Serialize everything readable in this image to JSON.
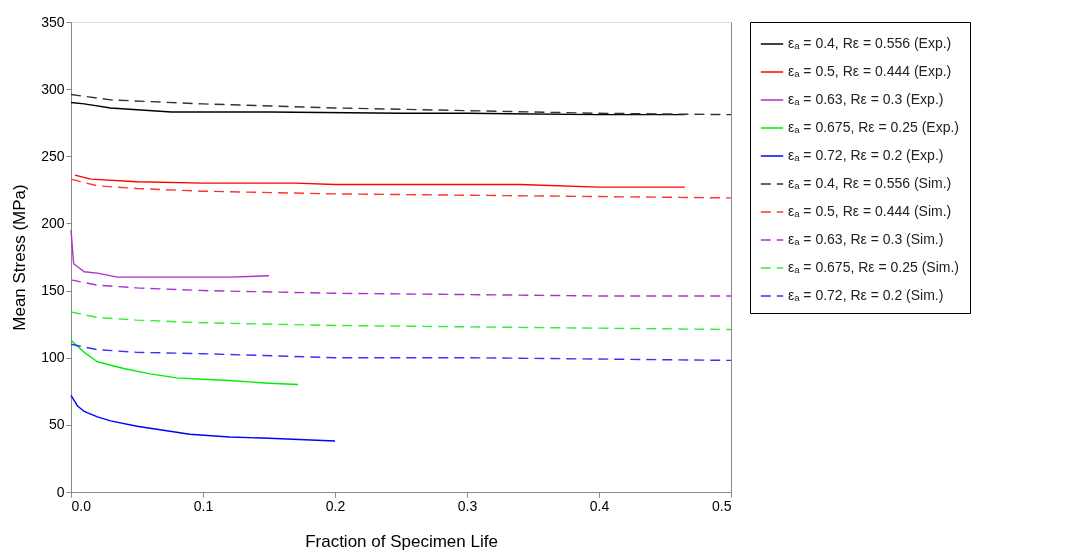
{
  "chart_data": {
    "type": "line",
    "xlabel": "Fraction of Specimen Life",
    "ylabel": "Mean Stress (MPa)",
    "xlim": [
      0,
      0.5
    ],
    "xticks": [
      {
        "value": 0,
        "label": "0.0"
      },
      0.1,
      0.2,
      0.3,
      0.4,
      0.5
    ],
    "ylim": [
      0,
      350
    ],
    "yticks": [
      0,
      50,
      100,
      150,
      200,
      250,
      300,
      350
    ],
    "grid": false,
    "legend": "right",
    "marker": "none",
    "series": [
      {
        "name": "εₐ = 0.4, Rε = 0.556 (Exp.)",
        "color": "#000000",
        "line_style": "solid",
        "x": [
          0,
          0.01,
          0.03,
          0.076,
          0.15,
          0.25,
          0.3,
          0.4,
          0.465
        ],
        "values": [
          290,
          289,
          286,
          283,
          283,
          282,
          282,
          281,
          281
        ]
      },
      {
        "name": "εₐ = 0.5, Rε = 0.444 (Exp.)",
        "color": "#ff0000",
        "line_style": "solid",
        "x": [
          0.003,
          0.015,
          0.05,
          0.1,
          0.17,
          0.2,
          0.34,
          0.4,
          0.465
        ],
        "values": [
          236,
          233,
          231,
          230,
          230,
          229,
          229,
          227,
          227
        ]
      },
      {
        "name": "εₐ = 0.63, Rε = 0.3 (Exp.)",
        "color": "#aa33cc",
        "line_style": "solid",
        "x": [
          0,
          0.002,
          0.01,
          0.02,
          0.035,
          0.1,
          0.12,
          0.15
        ],
        "values": [
          195,
          170,
          164,
          163,
          160,
          160,
          160,
          161
        ]
      },
      {
        "name": "εₐ = 0.675, Rε = 0.25 (Exp.)",
        "color": "#00ee00",
        "line_style": "solid",
        "x": [
          0,
          0.01,
          0.02,
          0.04,
          0.06,
          0.08,
          0.1,
          0.12,
          0.15,
          0.172
        ],
        "values": [
          113,
          104,
          97,
          92,
          88,
          85,
          84,
          83,
          81,
          80
        ]
      },
      {
        "name": "εₐ = 0.72, Rε = 0.2 (Exp.)",
        "color": "#0000ff",
        "line_style": "solid",
        "x": [
          0,
          0.005,
          0.01,
          0.02,
          0.03,
          0.05,
          0.07,
          0.09,
          0.12,
          0.15,
          0.2
        ],
        "values": [
          72,
          64,
          60,
          56,
          53,
          49,
          46,
          43,
          41,
          40,
          38
        ]
      },
      {
        "name": "εₐ = 0.4, Rε = 0.556 (Sim.)",
        "color": "#333333",
        "line_style": "dashed",
        "x": [
          0,
          0.03,
          0.1,
          0.2,
          0.3,
          0.4,
          0.5
        ],
        "values": [
          296,
          292,
          289,
          286,
          284,
          282,
          281
        ]
      },
      {
        "name": "εₐ = 0.5, Rε = 0.444 (Sim.)",
        "color": "#ff3333",
        "line_style": "dashed",
        "x": [
          0,
          0.02,
          0.05,
          0.1,
          0.2,
          0.3,
          0.4,
          0.5
        ],
        "values": [
          233,
          228,
          226,
          224,
          222,
          221,
          220,
          219
        ]
      },
      {
        "name": "εₐ = 0.63, Rε = 0.3 (Sim.)",
        "color": "#aa33cc",
        "line_style": "dashed",
        "x": [
          0,
          0.02,
          0.05,
          0.1,
          0.2,
          0.3,
          0.4,
          0.5
        ],
        "values": [
          158,
          154,
          152,
          150,
          148,
          147,
          146,
          146
        ]
      },
      {
        "name": "εₐ = 0.675, Rε = 0.25 (Sim.)",
        "color": "#33ee33",
        "line_style": "dashed",
        "x": [
          0,
          0.02,
          0.05,
          0.1,
          0.2,
          0.3,
          0.4,
          0.5
        ],
        "values": [
          134,
          130,
          128,
          126,
          124,
          123,
          122,
          121
        ]
      },
      {
        "name": "εₐ = 0.72, Rε = 0.2 (Sim.)",
        "color": "#3333ff",
        "line_style": "dashed",
        "x": [
          0,
          0.02,
          0.05,
          0.1,
          0.2,
          0.3,
          0.4,
          0.5
        ],
        "values": [
          110,
          106,
          104,
          103,
          100,
          100,
          99,
          98
        ]
      }
    ]
  }
}
